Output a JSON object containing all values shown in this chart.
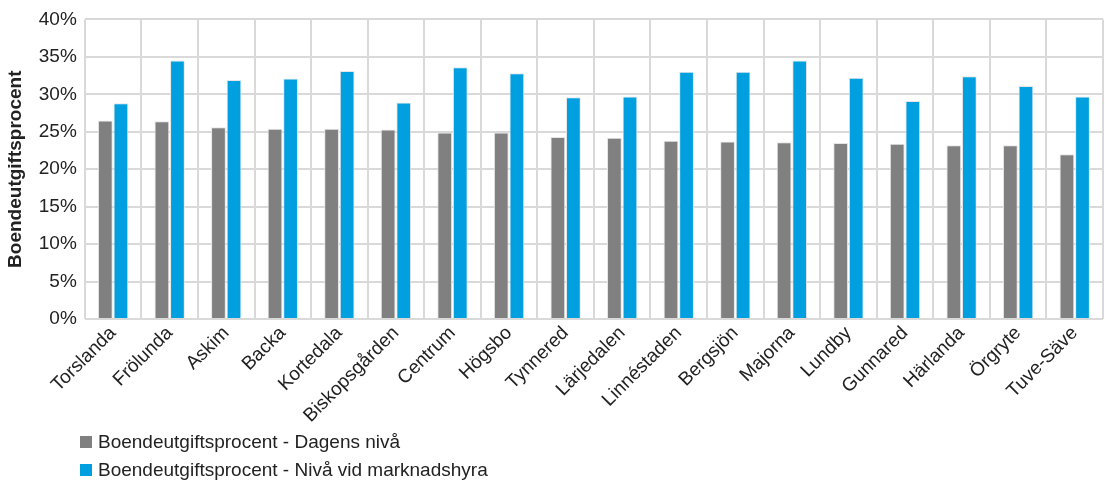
{
  "chart_data": {
    "type": "bar",
    "ylabel": "Boendeutgiftsprocent",
    "categories": [
      "Torslanda",
      "Frölunda",
      "Askim",
      "Backa",
      "Kortedala",
      "Biskopsgården",
      "Centrum",
      "Högsbo",
      "Tynnered",
      "Lärjedalen",
      "Linnéstaden",
      "Bergsjön",
      "Majorna",
      "Lundby",
      "Gunnared",
      "Härlanda",
      "Örgryte",
      "Tuve-Säve"
    ],
    "series": [
      {
        "name": "Boendeutgiftsprocent - Dagens nivå",
        "color": "#808080",
        "values": [
          26.5,
          26.4,
          25.6,
          25.4,
          25.4,
          25.3,
          24.9,
          24.9,
          24.3,
          24.2,
          23.8,
          23.7,
          23.6,
          23.5,
          23.4,
          23.2,
          23.2,
          22.0
        ]
      },
      {
        "name": "Boendeutgiftsprocent - Nivå vid marknadshyra",
        "color": "#009fe0",
        "values": [
          28.8,
          34.5,
          31.9,
          32.1,
          33.1,
          28.9,
          33.6,
          32.8,
          29.6,
          29.7,
          33.0,
          33.0,
          34.5,
          32.2,
          29.1,
          32.4,
          31.1,
          29.7
        ]
      }
    ],
    "ylim": [
      0,
      40
    ],
    "yticks": [
      {
        "value": 0,
        "label": "0%"
      },
      {
        "value": 5,
        "label": "5%"
      },
      {
        "value": 10,
        "label": "10%"
      },
      {
        "value": 15,
        "label": "15%"
      },
      {
        "value": 20,
        "label": "20%"
      },
      {
        "value": 25,
        "label": "25%"
      },
      {
        "value": 30,
        "label": "30%"
      },
      {
        "value": 35,
        "label": "35%"
      },
      {
        "value": 40,
        "label": "40%"
      }
    ],
    "grid": true,
    "legend": "bottom left"
  }
}
